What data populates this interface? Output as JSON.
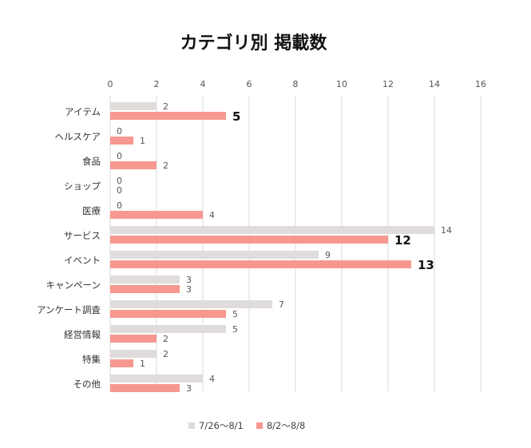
{
  "chart_data": {
    "type": "bar",
    "orientation": "horizontal",
    "title": "カテゴリ別 掲載数",
    "categories": [
      "アイテム",
      "ヘルスケア",
      "食品",
      "ショップ",
      "医療",
      "サービス",
      "イベント",
      "キャンペーン",
      "アンケート調査",
      "経営情報",
      "特集",
      "その他"
    ],
    "series": [
      {
        "name": "7/26〜8/1",
        "color": "#e0dcdb",
        "values": [
          2,
          0,
          0,
          0,
          0,
          14,
          9,
          3,
          7,
          5,
          2,
          4
        ]
      },
      {
        "name": "8/2〜8/8",
        "color": "#f6988f",
        "values": [
          5,
          1,
          2,
          0,
          4,
          12,
          13,
          3,
          5,
          2,
          1,
          3
        ]
      }
    ],
    "emphasized_labels": [
      {
        "series": 1,
        "index": 0
      },
      {
        "series": 1,
        "index": 5
      },
      {
        "series": 1,
        "index": 6
      }
    ],
    "xlim": [
      0,
      16
    ],
    "xticks": [
      0,
      2,
      4,
      6,
      8,
      10,
      12,
      14,
      16
    ],
    "xaxis_position": "top",
    "grid": true,
    "legend_position": "bottom"
  }
}
